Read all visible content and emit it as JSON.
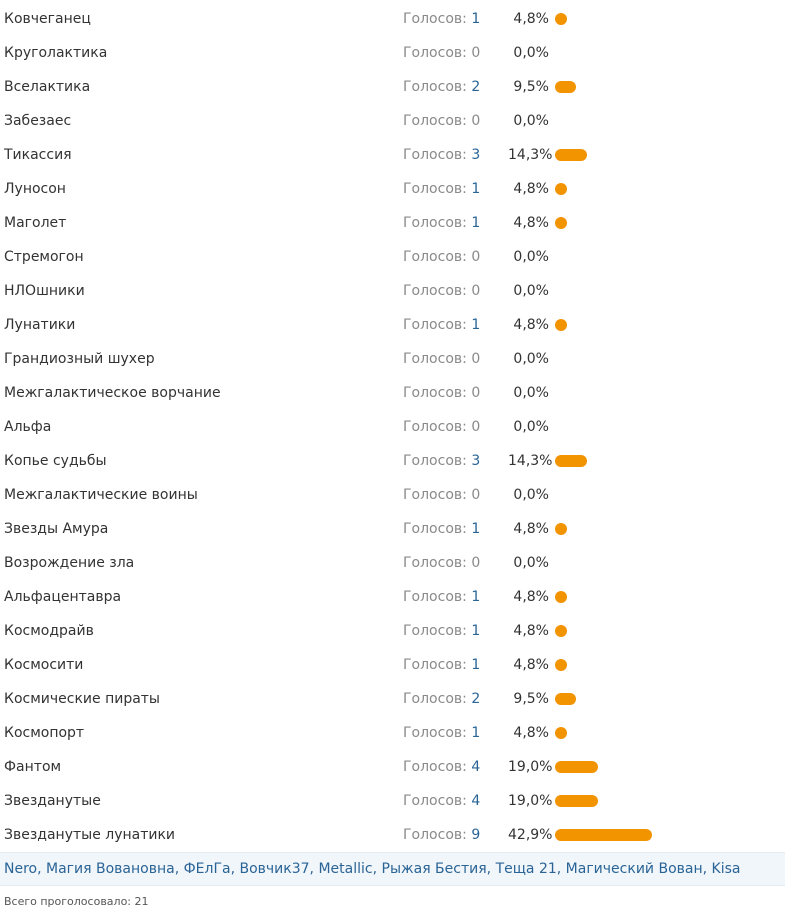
{
  "poll": {
    "votes_label": "Голосов:",
    "options": [
      {
        "label": "Ковчеганец",
        "votes": 1,
        "percent": "4,8%",
        "share": 4.8
      },
      {
        "label": "Круголактика",
        "votes": 0,
        "percent": "0,0%",
        "share": 0
      },
      {
        "label": "Вселактика",
        "votes": 2,
        "percent": "9,5%",
        "share": 9.5
      },
      {
        "label": "Забезаес",
        "votes": 0,
        "percent": "0,0%",
        "share": 0
      },
      {
        "label": "Тикассия",
        "votes": 3,
        "percent": "14,3%",
        "share": 14.3
      },
      {
        "label": "Луносон",
        "votes": 1,
        "percent": "4,8%",
        "share": 4.8
      },
      {
        "label": "Маголет",
        "votes": 1,
        "percent": "4,8%",
        "share": 4.8
      },
      {
        "label": "Стремогон",
        "votes": 0,
        "percent": "0,0%",
        "share": 0
      },
      {
        "label": "НЛОшники",
        "votes": 0,
        "percent": "0,0%",
        "share": 0
      },
      {
        "label": "Лунатики",
        "votes": 1,
        "percent": "4,8%",
        "share": 4.8
      },
      {
        "label": "Грандиозный шухер",
        "votes": 0,
        "percent": "0,0%",
        "share": 0
      },
      {
        "label": "Межгалактическое ворчание",
        "votes": 0,
        "percent": "0,0%",
        "share": 0
      },
      {
        "label": "Альфа",
        "votes": 0,
        "percent": "0,0%",
        "share": 0
      },
      {
        "label": "Копье судьбы",
        "votes": 3,
        "percent": "14,3%",
        "share": 14.3
      },
      {
        "label": "Межгалактические воины",
        "votes": 0,
        "percent": "0,0%",
        "share": 0
      },
      {
        "label": "Звезды Амура",
        "votes": 1,
        "percent": "4,8%",
        "share": 4.8
      },
      {
        "label": "Возрождение зла",
        "votes": 0,
        "percent": "0,0%",
        "share": 0
      },
      {
        "label": "Альфацентавра",
        "votes": 1,
        "percent": "4,8%",
        "share": 4.8
      },
      {
        "label": "Космодрайв",
        "votes": 1,
        "percent": "4,8%",
        "share": 4.8
      },
      {
        "label": "Космосити",
        "votes": 1,
        "percent": "4,8%",
        "share": 4.8
      },
      {
        "label": "Космические пираты",
        "votes": 2,
        "percent": "9,5%",
        "share": 9.5
      },
      {
        "label": "Космопорт",
        "votes": 1,
        "percent": "4,8%",
        "share": 4.8
      },
      {
        "label": "Фантом",
        "votes": 4,
        "percent": "19,0%",
        "share": 19.0
      },
      {
        "label": "Звезданутые",
        "votes": 4,
        "percent": "19,0%",
        "share": 19.0
      },
      {
        "label": "Звезданутые лунатики",
        "votes": 9,
        "percent": "42,9%",
        "share": 42.9
      }
    ],
    "voters": [
      "Nero",
      "Магия Вовановна",
      "ФЕлГа",
      "Вовчик37",
      "Metallic",
      "Рыжая Бестия",
      "Теща 21",
      "Магический Вован",
      "Kisa"
    ],
    "voters_separator": ", ",
    "total_label": "Всего проголосовало:",
    "total_count": "21"
  },
  "colors": {
    "bar": "#f29300",
    "link": "#2a6496",
    "muted": "#8a8a8a",
    "voters_bg": "#f1f6fb"
  }
}
